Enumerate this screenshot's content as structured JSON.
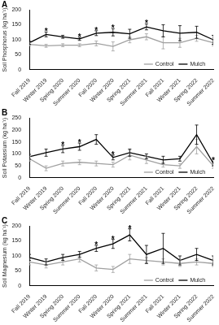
{
  "chart_data": [
    {
      "type": "line",
      "title": "A",
      "ylabel": "Soil Phosphorus (kg ha⁻¹)",
      "categories": [
        "Fall 2019",
        "Winter 2019",
        "Spring 2020",
        "Summer 2020",
        "Fall 2020",
        "Winter 2020",
        "Spring 2021",
        "Summer 2021",
        "Fall 2021",
        "Winter 2021",
        "Spring 2022",
        "Summer 2022"
      ],
      "series": [
        {
          "name": "Control",
          "color": "#a0a0a0",
          "marker": "none",
          "line_style": "solid",
          "values": [
            85,
            80,
            82,
            82,
            88,
            78,
            100,
            110,
            90,
            90,
            105,
            90
          ],
          "errors": [
            5,
            5,
            5,
            5,
            8,
            15,
            10,
            10,
            20,
            15,
            10,
            10
          ]
        },
        {
          "name": "Mulch",
          "color": "#000000",
          "marker": "none",
          "line_style": "solid",
          "values": [
            90,
            118,
            110,
            103,
            122,
            125,
            120,
            143,
            130,
            122,
            125,
            100
          ],
          "errors": [
            5,
            8,
            5,
            5,
            8,
            12,
            15,
            10,
            20,
            25,
            20,
            15
          ]
        }
      ],
      "annotations": [
        {
          "category": "Winter 2019",
          "text": "*"
        },
        {
          "category": "Summer 2020",
          "text": "*"
        },
        {
          "category": "Fall 2020",
          "text": "*"
        },
        {
          "category": "Winter 2020",
          "text": "*"
        },
        {
          "category": "Summer 2021",
          "text": "*"
        }
      ],
      "ylim": [
        0,
        200
      ],
      "yticks": [
        0,
        50,
        100,
        150,
        200
      ],
      "grid": false,
      "legend": "lower right"
    },
    {
      "type": "line",
      "title": "B",
      "ylabel": "Soil Potassium (kg ha⁻¹)",
      "categories": [
        "Fall 2019",
        "Winter 2019",
        "Spring 2020",
        "Summer 2020",
        "Fall 2020",
        "Winter 2020",
        "Spring 2021",
        "Summer 2021",
        "Fall 2021",
        "Winter 2021",
        "Spring 2022",
        "Summer 2022"
      ],
      "series": [
        {
          "name": "Control",
          "color": "#a0a0a0",
          "marker": "none",
          "line_style": "solid",
          "values": [
            80,
            40,
            60,
            65,
            60,
            55,
            95,
            75,
            55,
            50,
            130,
            50
          ],
          "errors": [
            10,
            10,
            10,
            10,
            10,
            10,
            20,
            15,
            10,
            10,
            30,
            10
          ]
        },
        {
          "name": "Mulch",
          "color": "#000000",
          "marker": "none",
          "line_style": "solid",
          "values": [
            88,
            105,
            120,
            130,
            160,
            85,
            105,
            90,
            75,
            80,
            180,
            60
          ],
          "errors": [
            10,
            15,
            15,
            15,
            20,
            10,
            15,
            10,
            15,
            10,
            40,
            10
          ]
        }
      ],
      "annotations": [
        {
          "category": "Spring 2020",
          "text": "*"
        },
        {
          "category": "Summer 2020",
          "text": "*"
        },
        {
          "category": "Winter 2020",
          "text": "*"
        },
        {
          "category": "Summer 2022",
          "text": "*"
        }
      ],
      "ylim": [
        0,
        250
      ],
      "yticks": [
        0,
        50,
        100,
        150,
        200,
        250
      ],
      "grid": false,
      "legend": "lower right"
    },
    {
      "type": "line",
      "title": "C",
      "ylabel": "Soil Magnesium (kg ha⁻¹)",
      "categories": [
        "Fall 2019",
        "Winter 2019",
        "Spring 2020",
        "Summer 2020",
        "Fall 2020",
        "Winter 2020",
        "Spring 2021",
        "Summer 2021",
        "Fall 2021",
        "Winter 2021",
        "Spring 2022",
        "Summer 2022"
      ],
      "series": [
        {
          "name": "Control",
          "color": "#a0a0a0",
          "marker": "none",
          "line_style": "solid",
          "values": [
            80,
            70,
            80,
            90,
            60,
            55,
            90,
            85,
            80,
            75,
            80,
            75
          ],
          "errors": [
            10,
            10,
            10,
            10,
            10,
            10,
            15,
            10,
            10,
            10,
            10,
            10
          ]
        },
        {
          "name": "Mulch",
          "color": "#000000",
          "marker": "none",
          "line_style": "solid",
          "values": [
            95,
            80,
            95,
            105,
            125,
            140,
            170,
            105,
            125,
            85,
            105,
            85
          ],
          "errors": [
            10,
            10,
            10,
            10,
            10,
            15,
            20,
            30,
            50,
            15,
            20,
            15
          ]
        }
      ],
      "annotations": [
        {
          "category": "Fall 2020",
          "text": "*"
        },
        {
          "category": "Winter 2020",
          "text": "*"
        },
        {
          "category": "Spring 2021",
          "text": "*"
        }
      ],
      "ylim": [
        0,
        200
      ],
      "yticks": [
        0,
        50,
        100,
        150,
        200
      ],
      "grid": false,
      "legend": "lower right"
    }
  ]
}
